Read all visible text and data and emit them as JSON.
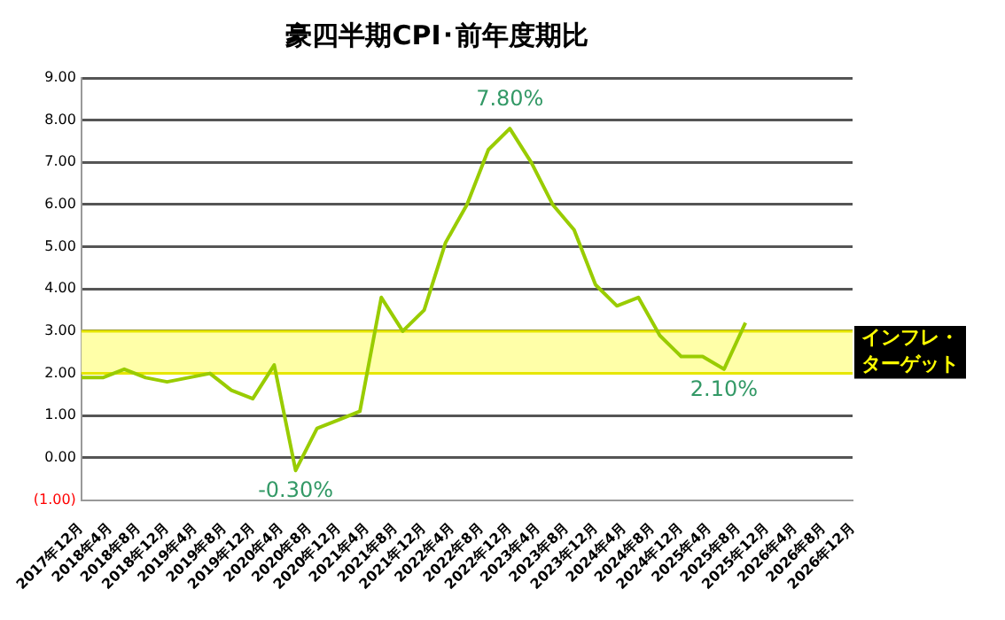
{
  "chart_data": {
    "type": "line",
    "title": "豪四半期CPI･前年度期比",
    "x": [
      "2017-12",
      "2018-03",
      "2018-06",
      "2018-09",
      "2018-12",
      "2019-03",
      "2019-06",
      "2019-09",
      "2019-12",
      "2020-03",
      "2020-06",
      "2020-09",
      "2020-12",
      "2021-03",
      "2021-06",
      "2021-09",
      "2021-12",
      "2022-03",
      "2022-06",
      "2022-09",
      "2022-12",
      "2023-03",
      "2023-06",
      "2023-09",
      "2023-12",
      "2024-03",
      "2024-06",
      "2024-09",
      "2024-12",
      "2025-03",
      "2025-06",
      "2025-09"
    ],
    "series": [
      {
        "color": "#99cc00",
        "values": [
          1.9,
          1.9,
          2.1,
          1.9,
          1.8,
          1.9,
          2.0,
          1.6,
          1.4,
          2.2,
          -0.3,
          0.7,
          0.9,
          1.1,
          3.8,
          3.0,
          3.5,
          5.1,
          6.0,
          7.3,
          7.8,
          7.0,
          6.0,
          5.4,
          4.1,
          3.6,
          3.8,
          2.9,
          2.4,
          2.4,
          2.1,
          3.2
        ]
      }
    ],
    "xlim": [
      "2017-12",
      "2026-12"
    ],
    "xticks": [
      {
        "value": "2017-12",
        "label": "2017年12月"
      },
      {
        "value": "2018-04",
        "label": "2018年4月"
      },
      {
        "value": "2018-08",
        "label": "2018年8月"
      },
      {
        "value": "2018-12",
        "label": "2018年12月"
      },
      {
        "value": "2019-04",
        "label": "2019年4月"
      },
      {
        "value": "2019-08",
        "label": "2019年8月"
      },
      {
        "value": "2019-12",
        "label": "2019年12月"
      },
      {
        "value": "2020-04",
        "label": "2020年4月"
      },
      {
        "value": "2020-08",
        "label": "2020年8月"
      },
      {
        "value": "2020-12",
        "label": "2020年12月"
      },
      {
        "value": "2021-04",
        "label": "2021年4月"
      },
      {
        "value": "2021-08",
        "label": "2021年8月"
      },
      {
        "value": "2021-12",
        "label": "2021年12月"
      },
      {
        "value": "2022-04",
        "label": "2022年4月"
      },
      {
        "value": "2022-08",
        "label": "2022年8月"
      },
      {
        "value": "2022-12",
        "label": "2022年12月"
      },
      {
        "value": "2023-04",
        "label": "2023年4月"
      },
      {
        "value": "2023-08",
        "label": "2023年8月"
      },
      {
        "value": "2023-12",
        "label": "2023年12月"
      },
      {
        "value": "2024-04",
        "label": "2024年4月"
      },
      {
        "value": "2024-08",
        "label": "2024年8月"
      },
      {
        "value": "2024-12",
        "label": "2024年12月"
      },
      {
        "value": "2025-04",
        "label": "2025年4月"
      },
      {
        "value": "2025-08",
        "label": "2025年8月"
      },
      {
        "value": "2025-12",
        "label": "2025年12月"
      },
      {
        "value": "2026-04",
        "label": "2026年4月"
      },
      {
        "value": "2026-08",
        "label": "2026年8月"
      },
      {
        "value": "2026-12",
        "label": "2026年12月"
      }
    ],
    "ylim": [
      -1,
      9
    ],
    "yticks": [
      {
        "value": -1,
        "label": "(1.00)"
      },
      {
        "value": 0,
        "label": "0.00"
      },
      {
        "value": 1,
        "label": "1.00"
      },
      {
        "value": 2,
        "label": "2.00"
      },
      {
        "value": 3,
        "label": "3.00"
      },
      {
        "value": 4,
        "label": "4.00"
      },
      {
        "value": 5,
        "label": "5.00"
      },
      {
        "value": 6,
        "label": "6.00"
      },
      {
        "value": 7,
        "label": "7.00"
      },
      {
        "value": 8,
        "label": "8.00"
      },
      {
        "value": 9,
        "label": "9.00"
      }
    ],
    "grid": "y",
    "legend": false,
    "marker": "none",
    "line_style": "solid",
    "bands": [
      {
        "axis": "y",
        "from": 2,
        "to": 3,
        "label": "インフレ・ターゲット",
        "color": "#ffffa8"
      }
    ],
    "annotations": [
      {
        "text": "7.80%",
        "x": "2022-12",
        "y": 7.8
      },
      {
        "text": "-0.30%",
        "x": "2020-06",
        "y": -0.3
      },
      {
        "text": "2.10%",
        "x": "2025-06",
        "y": 2.1
      }
    ]
  }
}
